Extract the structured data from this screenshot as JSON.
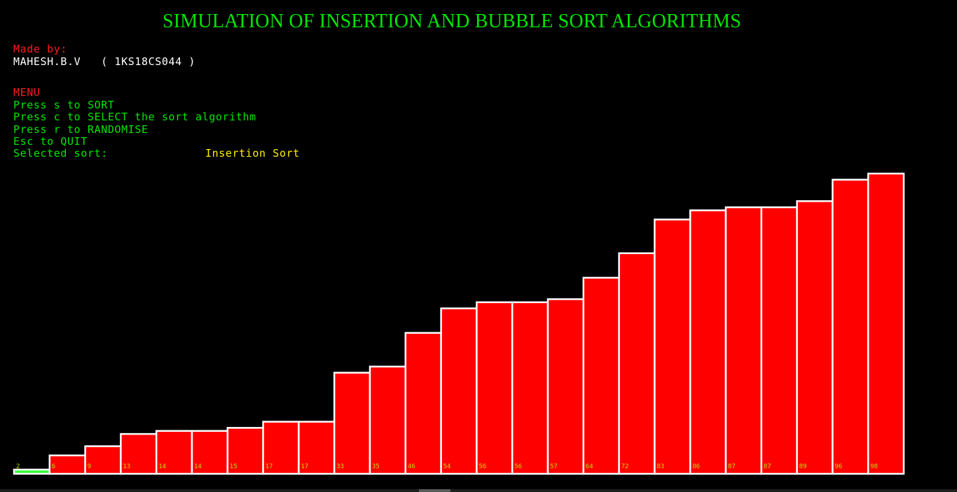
{
  "window": {
    "title": "SIMULATION OF INSERTION AND BUBBLE SORT ALGORITHMS"
  },
  "author": {
    "made_by_label": "Made by:",
    "name": "MAHESH.B.V",
    "usn": "( 1KS18CS044 )"
  },
  "menu": {
    "heading": "MENU",
    "items": [
      "Press s to SORT",
      "Press c to SELECT the sort algorithm",
      "Press r to RANDOMISE",
      "Esc to QUIT"
    ],
    "selected_label": "Selected sort:",
    "selected_value": "Insertion Sort"
  },
  "colors": {
    "background": "#000000",
    "title": "#00e600",
    "heading": "#ff1a1a",
    "menu_text": "#00e600",
    "selected_value": "#ffee00",
    "bar_fill": "#ff0000",
    "bar_outline": "#ffffff",
    "bar_label": "#b8e000",
    "highlight_bar": "#33ff33"
  },
  "chart_data": {
    "type": "bar",
    "categories": [
      "0",
      "1",
      "2",
      "3",
      "4",
      "5",
      "6",
      "7",
      "8",
      "9",
      "10",
      "11",
      "12",
      "13",
      "14",
      "15",
      "16",
      "17",
      "18",
      "19",
      "20",
      "21",
      "22",
      "23",
      "24"
    ],
    "values": [
      2,
      6,
      9,
      13,
      14,
      14,
      15,
      17,
      17,
      33,
      35,
      46,
      54,
      56,
      56,
      57,
      64,
      72,
      83,
      86,
      87,
      87,
      89,
      96,
      98
    ],
    "value_labels": [
      "2",
      "6",
      "9",
      "13",
      "14",
      "14",
      "15",
      "17",
      "17",
      "33",
      "35",
      "46",
      "54",
      "56",
      "56",
      "57",
      "64",
      "72",
      "83",
      "86",
      "87",
      "87",
      "89",
      "96",
      "98"
    ],
    "highlighted_index": 0,
    "title": "",
    "xlabel": "",
    "ylabel": "",
    "ylim": [
      0,
      98
    ],
    "grid": false,
    "legend": "none"
  }
}
